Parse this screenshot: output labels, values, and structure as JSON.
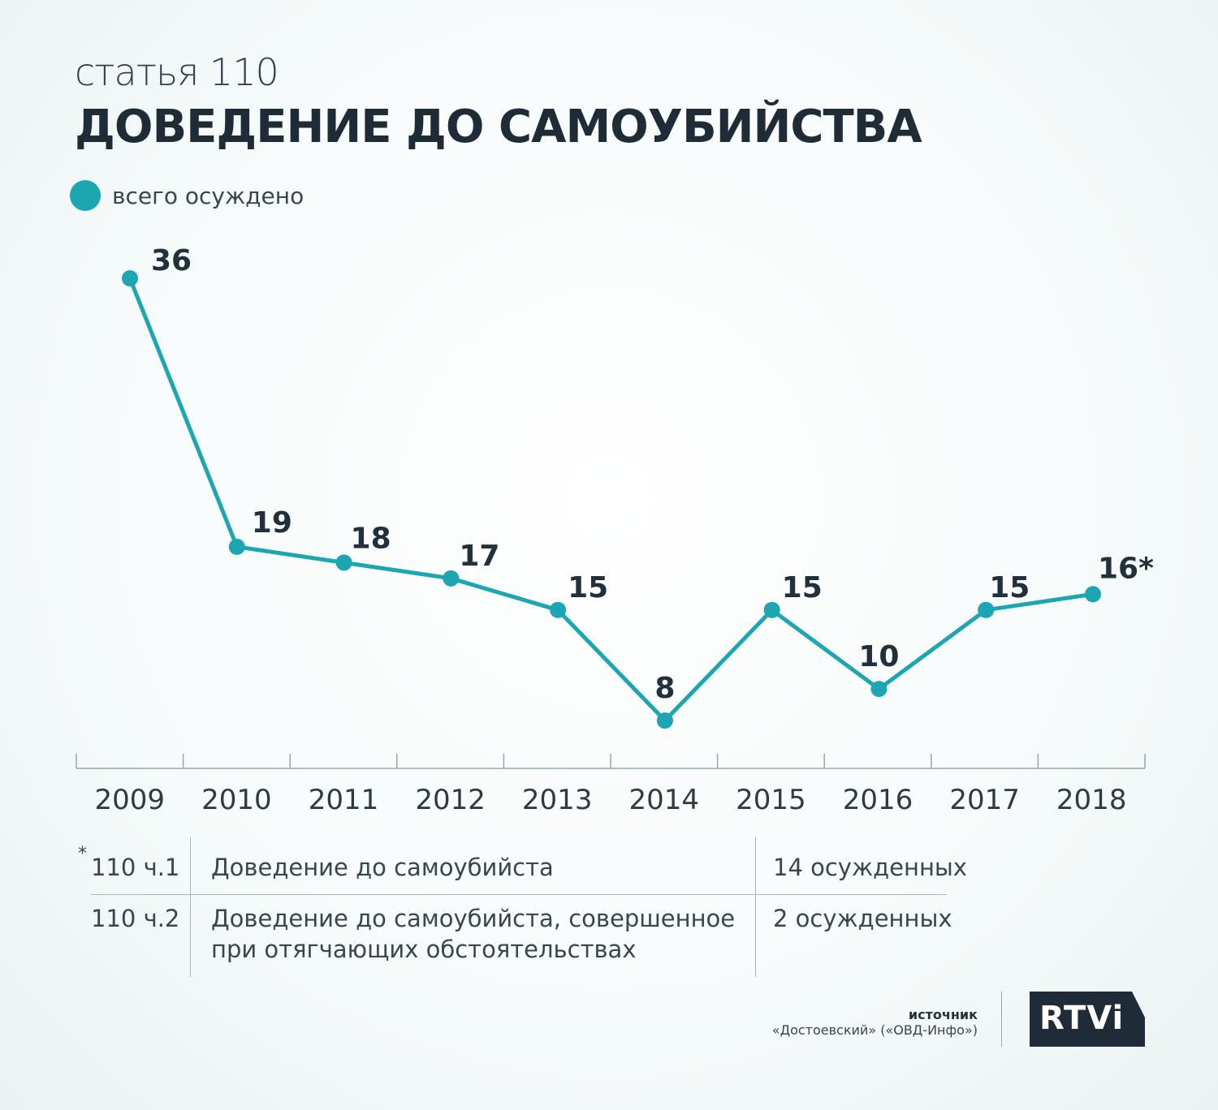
{
  "header": {
    "subtitle": "статья 110",
    "title": "ДОВЕДЕНИЕ ДО САМОУБИЙСТВА"
  },
  "legend": {
    "label": "всего осуждено",
    "color": "#1ba6b2"
  },
  "chart_data": {
    "type": "line",
    "title": "ДОВЕДЕНИЕ ДО САМОУБИЙСТВА",
    "xlabel": "",
    "ylabel": "",
    "ylim": [
      8,
      36
    ],
    "grid": false,
    "legend_position": "top-left",
    "categories": [
      "2009",
      "2010",
      "2011",
      "2012",
      "2013",
      "2014",
      "2015",
      "2016",
      "2017",
      "2018"
    ],
    "series": [
      {
        "name": "всего осуждено",
        "values": [
          36,
          19,
          18,
          17,
          15,
          8,
          15,
          10,
          15,
          16
        ]
      }
    ],
    "data_labels": [
      "36",
      "19",
      "18",
      "17",
      "15",
      "8",
      "15",
      "10",
      "15",
      "16*"
    ]
  },
  "footnote": {
    "marker": "*",
    "rows": [
      {
        "code": "110 ч.1",
        "description": "Доведение до самоубийста",
        "count": "14 осужденных"
      },
      {
        "code": "110 ч.2",
        "description_line1": "Доведение до самоубийста, совершенное",
        "description_line2": "при отягчающих обстоятельствах",
        "count": "2 осужденных"
      }
    ]
  },
  "source": {
    "label": "источник",
    "text": "«Достоевский» («ОВД-Инфо»)"
  },
  "logo": {
    "text": "RTVi",
    "color": "#1f2c38"
  }
}
